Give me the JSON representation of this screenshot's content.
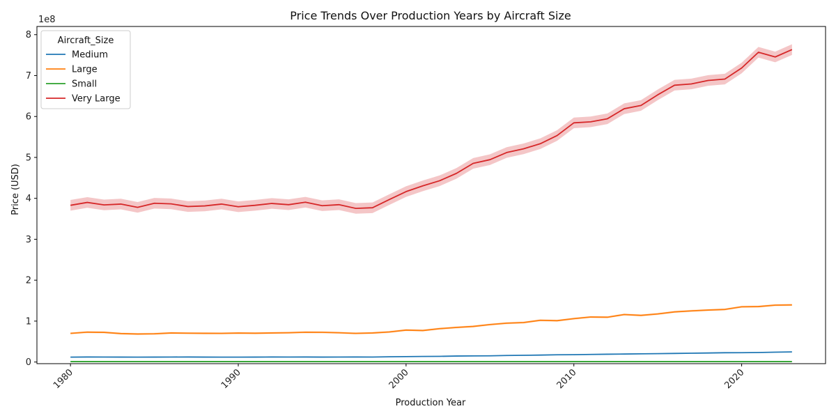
{
  "chart_data": {
    "type": "line",
    "title": "Price Trends Over Production Years by Aircraft Size",
    "xlabel": "Production Year",
    "ylabel": "Price (USD)",
    "y_offset_label": "1e8",
    "xlim": [
      1978,
      2025
    ],
    "ylim": [
      -4000000,
      820000000
    ],
    "x_ticks": [
      1980,
      1990,
      2000,
      2010,
      2020
    ],
    "x_tick_labels": [
      "1980",
      "1990",
      "2000",
      "2010",
      "2020"
    ],
    "y_ticks": [
      0,
      100000000,
      200000000,
      300000000,
      400000000,
      500000000,
      600000000,
      700000000,
      800000000
    ],
    "y_tick_labels": [
      "0",
      "1",
      "2",
      "3",
      "4",
      "5",
      "6",
      "7",
      "8"
    ],
    "grid": false,
    "legend": {
      "title": "Aircraft_Size",
      "placement": "top-left"
    },
    "x": [
      1980,
      1981,
      1982,
      1983,
      1984,
      1985,
      1986,
      1987,
      1988,
      1989,
      1990,
      1991,
      1992,
      1993,
      1994,
      1995,
      1996,
      1997,
      1998,
      1999,
      2000,
      2001,
      2002,
      2003,
      2004,
      2005,
      2006,
      2007,
      2008,
      2009,
      2010,
      2011,
      2012,
      2013,
      2014,
      2015,
      2016,
      2017,
      2018,
      2019,
      2020,
      2021,
      2022,
      2023
    ],
    "series": [
      {
        "name": "Medium",
        "color": "#1f77b4",
        "values": [
          12000000,
          12300000,
          12200000,
          12100000,
          12000000,
          12100000,
          12200000,
          12300000,
          12100000,
          12000000,
          12000000,
          12100000,
          12300000,
          12200000,
          12300000,
          12100000,
          12200000,
          12300000,
          12200000,
          12800000,
          13200000,
          13600000,
          13900000,
          14600000,
          15000000,
          15200000,
          16000000,
          16400000,
          17000000,
          17700000,
          17900000,
          18600000,
          19100000,
          19500000,
          20100000,
          20500000,
          21000000,
          21500000,
          22100000,
          22700000,
          22800000,
          23200000,
          24100000,
          24700000
        ],
        "band": 600000
      },
      {
        "name": "Large",
        "color": "#ff7f0e",
        "values": [
          70000000,
          73000000,
          72500000,
          69500000,
          68500000,
          69000000,
          71000000,
          70500000,
          70200000,
          70000000,
          70800000,
          70400000,
          71000000,
          71500000,
          72800000,
          72600000,
          71500000,
          70000000,
          71000000,
          73500000,
          78000000,
          77000000,
          81500000,
          84500000,
          87000000,
          91500000,
          95000000,
          96500000,
          102000000,
          101000000,
          106000000,
          110000000,
          109500000,
          116000000,
          114000000,
          117500000,
          122500000,
          125000000,
          127000000,
          128500000,
          135000000,
          135500000,
          139000000,
          139500000
        ],
        "band": 2500000
      },
      {
        "name": "Small",
        "color": "#2ca02c",
        "values": [
          1000000,
          1000000,
          1000000,
          1000000,
          1000000,
          1000000,
          1000000,
          1000000,
          1000000,
          1000000,
          1000000,
          1000000,
          1000000,
          1000000,
          1000000,
          1000000,
          1000000,
          1000000,
          1000000,
          1000000,
          1000000,
          1000000,
          1000000,
          1000000,
          1000000,
          1000000,
          1000000,
          1000000,
          1000000,
          1000000,
          1000000,
          1000000,
          1000000,
          1000000,
          1000000,
          1000000,
          1000000,
          1000000,
          1000000,
          1000000,
          1000000,
          1000000,
          1000000,
          1000000
        ],
        "band": 100000
      },
      {
        "name": "Very Large",
        "color": "#d62728",
        "band_color": "#f0b3b4",
        "values": [
          383000000,
          390000000,
          384000000,
          386000000,
          378000000,
          388000000,
          386500000,
          380000000,
          381500000,
          386000000,
          379500000,
          383000000,
          387500000,
          384500000,
          390500000,
          382000000,
          384500000,
          375500000,
          377000000,
          397000000,
          416500000,
          430500000,
          443000000,
          461000000,
          485500000,
          494500000,
          512000000,
          521000000,
          533500000,
          553500000,
          584500000,
          587000000,
          594500000,
          619000000,
          627000000,
          653000000,
          676500000,
          679500000,
          688000000,
          691500000,
          718500000,
          757000000,
          745500000,
          763500000
        ],
        "band": 13000000
      }
    ]
  }
}
